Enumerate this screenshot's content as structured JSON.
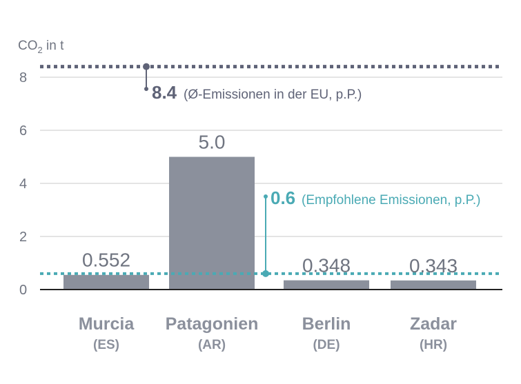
{
  "chart_data": {
    "type": "bar",
    "ylabel_prefix": "CO",
    "ylabel_sub": "2",
    "ylabel_suffix": " in t",
    "ylim": [
      0,
      9
    ],
    "yticks": [
      0,
      2,
      4,
      6,
      8
    ],
    "grid": true,
    "categories": [
      "Murcia",
      "Patagonien",
      "Berlin",
      "Zadar"
    ],
    "category_codes": [
      "(ES)",
      "(AR)",
      "(DE)",
      "(HR)"
    ],
    "values": [
      0.552,
      5.0,
      0.348,
      0.343
    ],
    "value_labels": [
      "0.552",
      "5.0",
      "0.348",
      "0.343"
    ],
    "reference_lines": [
      {
        "value": 8.4,
        "value_label": "8.4",
        "text": "(Ø-Emissionen in der EU, p.P.)",
        "color": "#5f6377"
      },
      {
        "value": 0.6,
        "value_label": "0.6",
        "text": "(Empfohlene Emissionen, p.P.)",
        "color": "#4aaab4"
      }
    ],
    "colors": {
      "bar": "#8b909c",
      "grid": "#c9c9c9",
      "axis": "#222222",
      "text": "#6f7480"
    }
  }
}
